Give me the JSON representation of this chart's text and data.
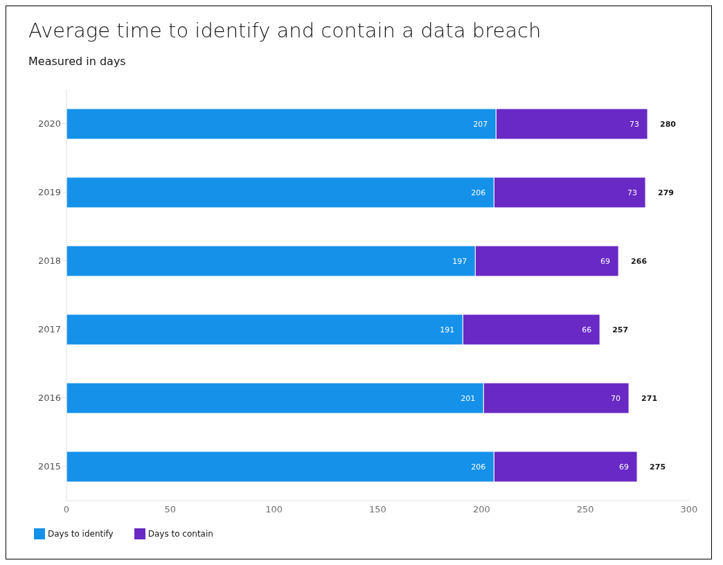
{
  "chart_data": {
    "type": "bar",
    "orientation": "horizontal",
    "stacked": true,
    "title": "Average time to identify and contain a data breach",
    "subtitle": "Measured in days",
    "categories": [
      "2020",
      "2019",
      "2018",
      "2017",
      "2016",
      "2015"
    ],
    "series": [
      {
        "name": "Days to identify",
        "color": "#1591ea",
        "values": [
          207,
          206,
          197,
          191,
          201,
          206
        ]
      },
      {
        "name": "Days to contain",
        "color": "#6929c4",
        "values": [
          73,
          73,
          69,
          66,
          70,
          69
        ]
      }
    ],
    "totals": [
      "280",
      "279",
      "266",
      "257",
      "271",
      "275"
    ],
    "data_labels": true,
    "xlim": [
      0,
      300
    ],
    "xticks": [
      0,
      50,
      100,
      150,
      200,
      250,
      300
    ],
    "legend": "bottom left"
  }
}
